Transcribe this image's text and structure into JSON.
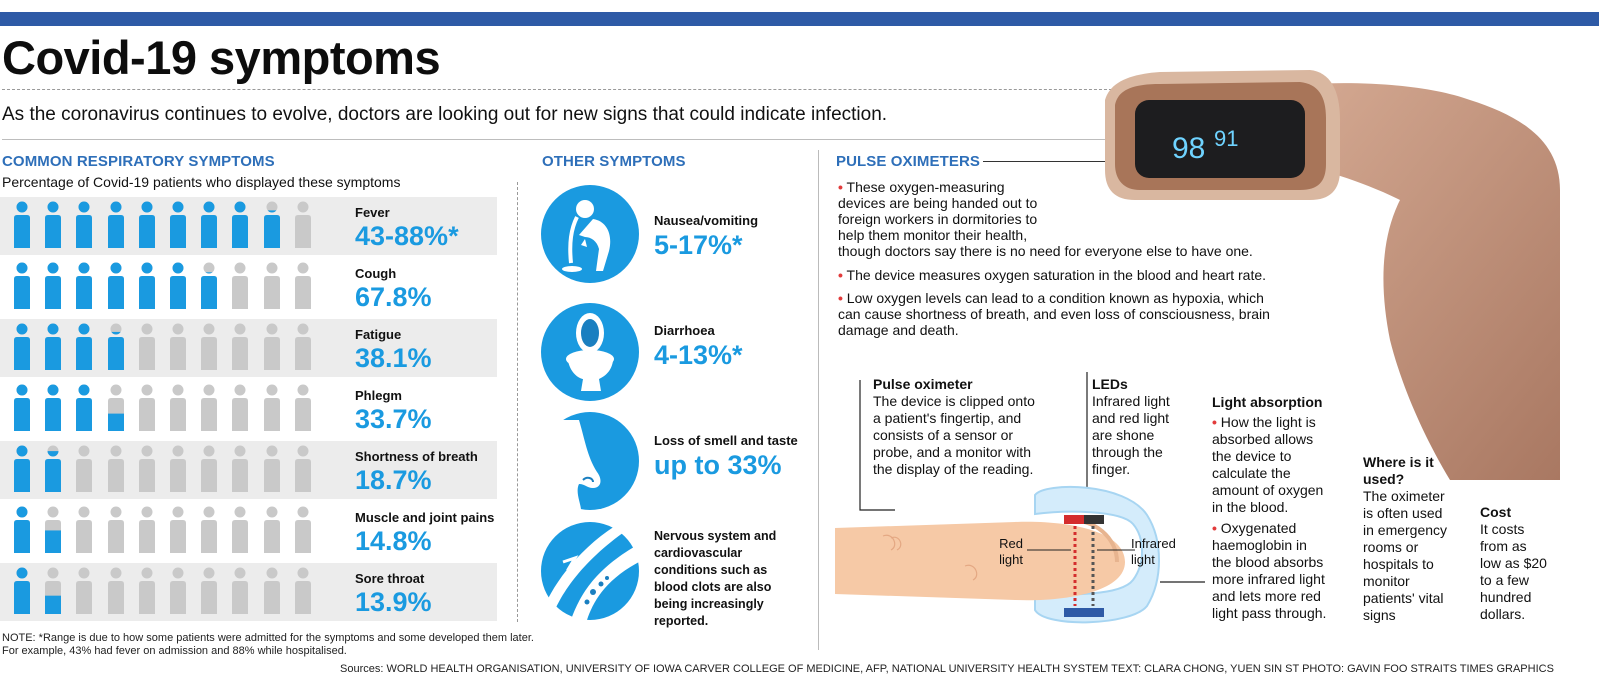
{
  "title": "Covid-19 symptoms",
  "subtitle": "As the coronavirus continues to evolve, doctors are looking out for new signs that could indicate infection.",
  "respiratory": {
    "heading": "COMMON RESPIRATORY SYMPTOMS",
    "subheading": "Percentage of Covid-19 patients who displayed these symptoms",
    "symptoms": [
      {
        "name": "Fever",
        "value_label": "43-88%*",
        "filled_fraction": 0.88
      },
      {
        "name": "Cough",
        "value_label": "67.8%",
        "filled_fraction": 0.678
      },
      {
        "name": "Fatigue",
        "value_label": "38.1%",
        "filled_fraction": 0.381
      },
      {
        "name": "Phlegm",
        "value_label": "33.7%",
        "filled_fraction": 0.337
      },
      {
        "name": "Shortness of breath",
        "value_label": "18.7%",
        "filled_fraction": 0.187
      },
      {
        "name": "Muscle and joint pains",
        "value_label": "14.8%",
        "filled_fraction": 0.148
      },
      {
        "name": "Sore throat",
        "value_label": "13.9%",
        "filled_fraction": 0.139
      }
    ]
  },
  "other": {
    "heading": "OTHER SYMPTOMS",
    "items": [
      {
        "name": "Nausea/vomiting",
        "value_label": "5-17%*",
        "icon": "nausea-icon"
      },
      {
        "name": "Diarrhoea",
        "value_label": "4-13%*",
        "icon": "toilet-icon"
      },
      {
        "name": "Loss of smell and taste",
        "value_label": "up to 33%",
        "icon": "nose-icon"
      },
      {
        "text": "Nervous system and cardiovascular conditions such as blood clots are also being increasingly reported.",
        "icon": "blood-clot-icon"
      }
    ]
  },
  "oximeter": {
    "heading": "PULSE OXIMETERS",
    "display_reading_1": "98",
    "display_reading_2": "91",
    "bullets": [
      [
        "These oxygen-measuring",
        "devices are being handed out to",
        "foreign workers in dormitories to",
        "help them monitor their health,",
        "though doctors say there is no need for everyone else to have one."
      ],
      [
        "The device measures oxygen saturation in the blood and heart rate."
      ],
      [
        "Low oxygen levels can lead to a condition known as hypoxia, which",
        "can cause shortness of breath, and even loss of consciousness, brain",
        "damage and death."
      ]
    ],
    "pulse_col": {
      "heading": "Pulse oximeter",
      "lines": [
        "The device is clipped onto",
        "a patient's fingertip, and",
        "consists of a sensor or",
        "probe, and a monitor with",
        "the display of the reading."
      ]
    },
    "leds_col": {
      "heading": "LEDs",
      "lines": [
        "Infrared light",
        "and red light",
        "are shone",
        "through the",
        "finger."
      ]
    },
    "absorption_col": {
      "heading": "Light absorption",
      "bullet1": [
        "How the light is",
        "absorbed allows",
        "the device to",
        "calculate the",
        "amount of oxygen",
        "in the blood."
      ],
      "bullet2": [
        "Oxygenated",
        "haemoglobin in",
        "the blood absorbs",
        "more infrared light",
        "and lets more red",
        "light pass through."
      ]
    },
    "where_col": {
      "heading_lines": [
        "Where is it",
        "used?"
      ],
      "lines": [
        "The oximeter",
        "is often used",
        "in emergency",
        "rooms or",
        "hospitals to",
        "monitor",
        "patients' vital",
        "signs"
      ]
    },
    "cost_col": {
      "heading": "Cost",
      "lines": [
        "It costs",
        "from as",
        "low as $20",
        "to a few",
        "hundred",
        "dollars."
      ]
    },
    "diagram": {
      "red_label": [
        "Red",
        "light"
      ],
      "infrared_label": [
        "Infrared",
        "light"
      ]
    }
  },
  "note": [
    "NOTE: *Range is due to how some patients were admitted for the symptoms and some developed them later.",
    "For example, 43% had fever on admission and 88% while hospitalised."
  ],
  "credits": "Sources: WORLD HEALTH ORGANISATION, UNIVERSITY OF IOWA CARVER COLLEGE OF MEDICINE, AFP, NATIONAL UNIVERSITY HEALTH SYSTEM   TEXT: CLARA CHONG, YUEN SIN   ST PHOTO: GAVIN FOO   STRAITS TIMES GRAPHICS",
  "colors": {
    "accent_blue": "#1a9ae0",
    "heading_blue": "#2e6fb9",
    "bar_blue": "#2e5aa6",
    "person_grey": "#c9c9c9",
    "bullet_red": "#e23b3b"
  }
}
